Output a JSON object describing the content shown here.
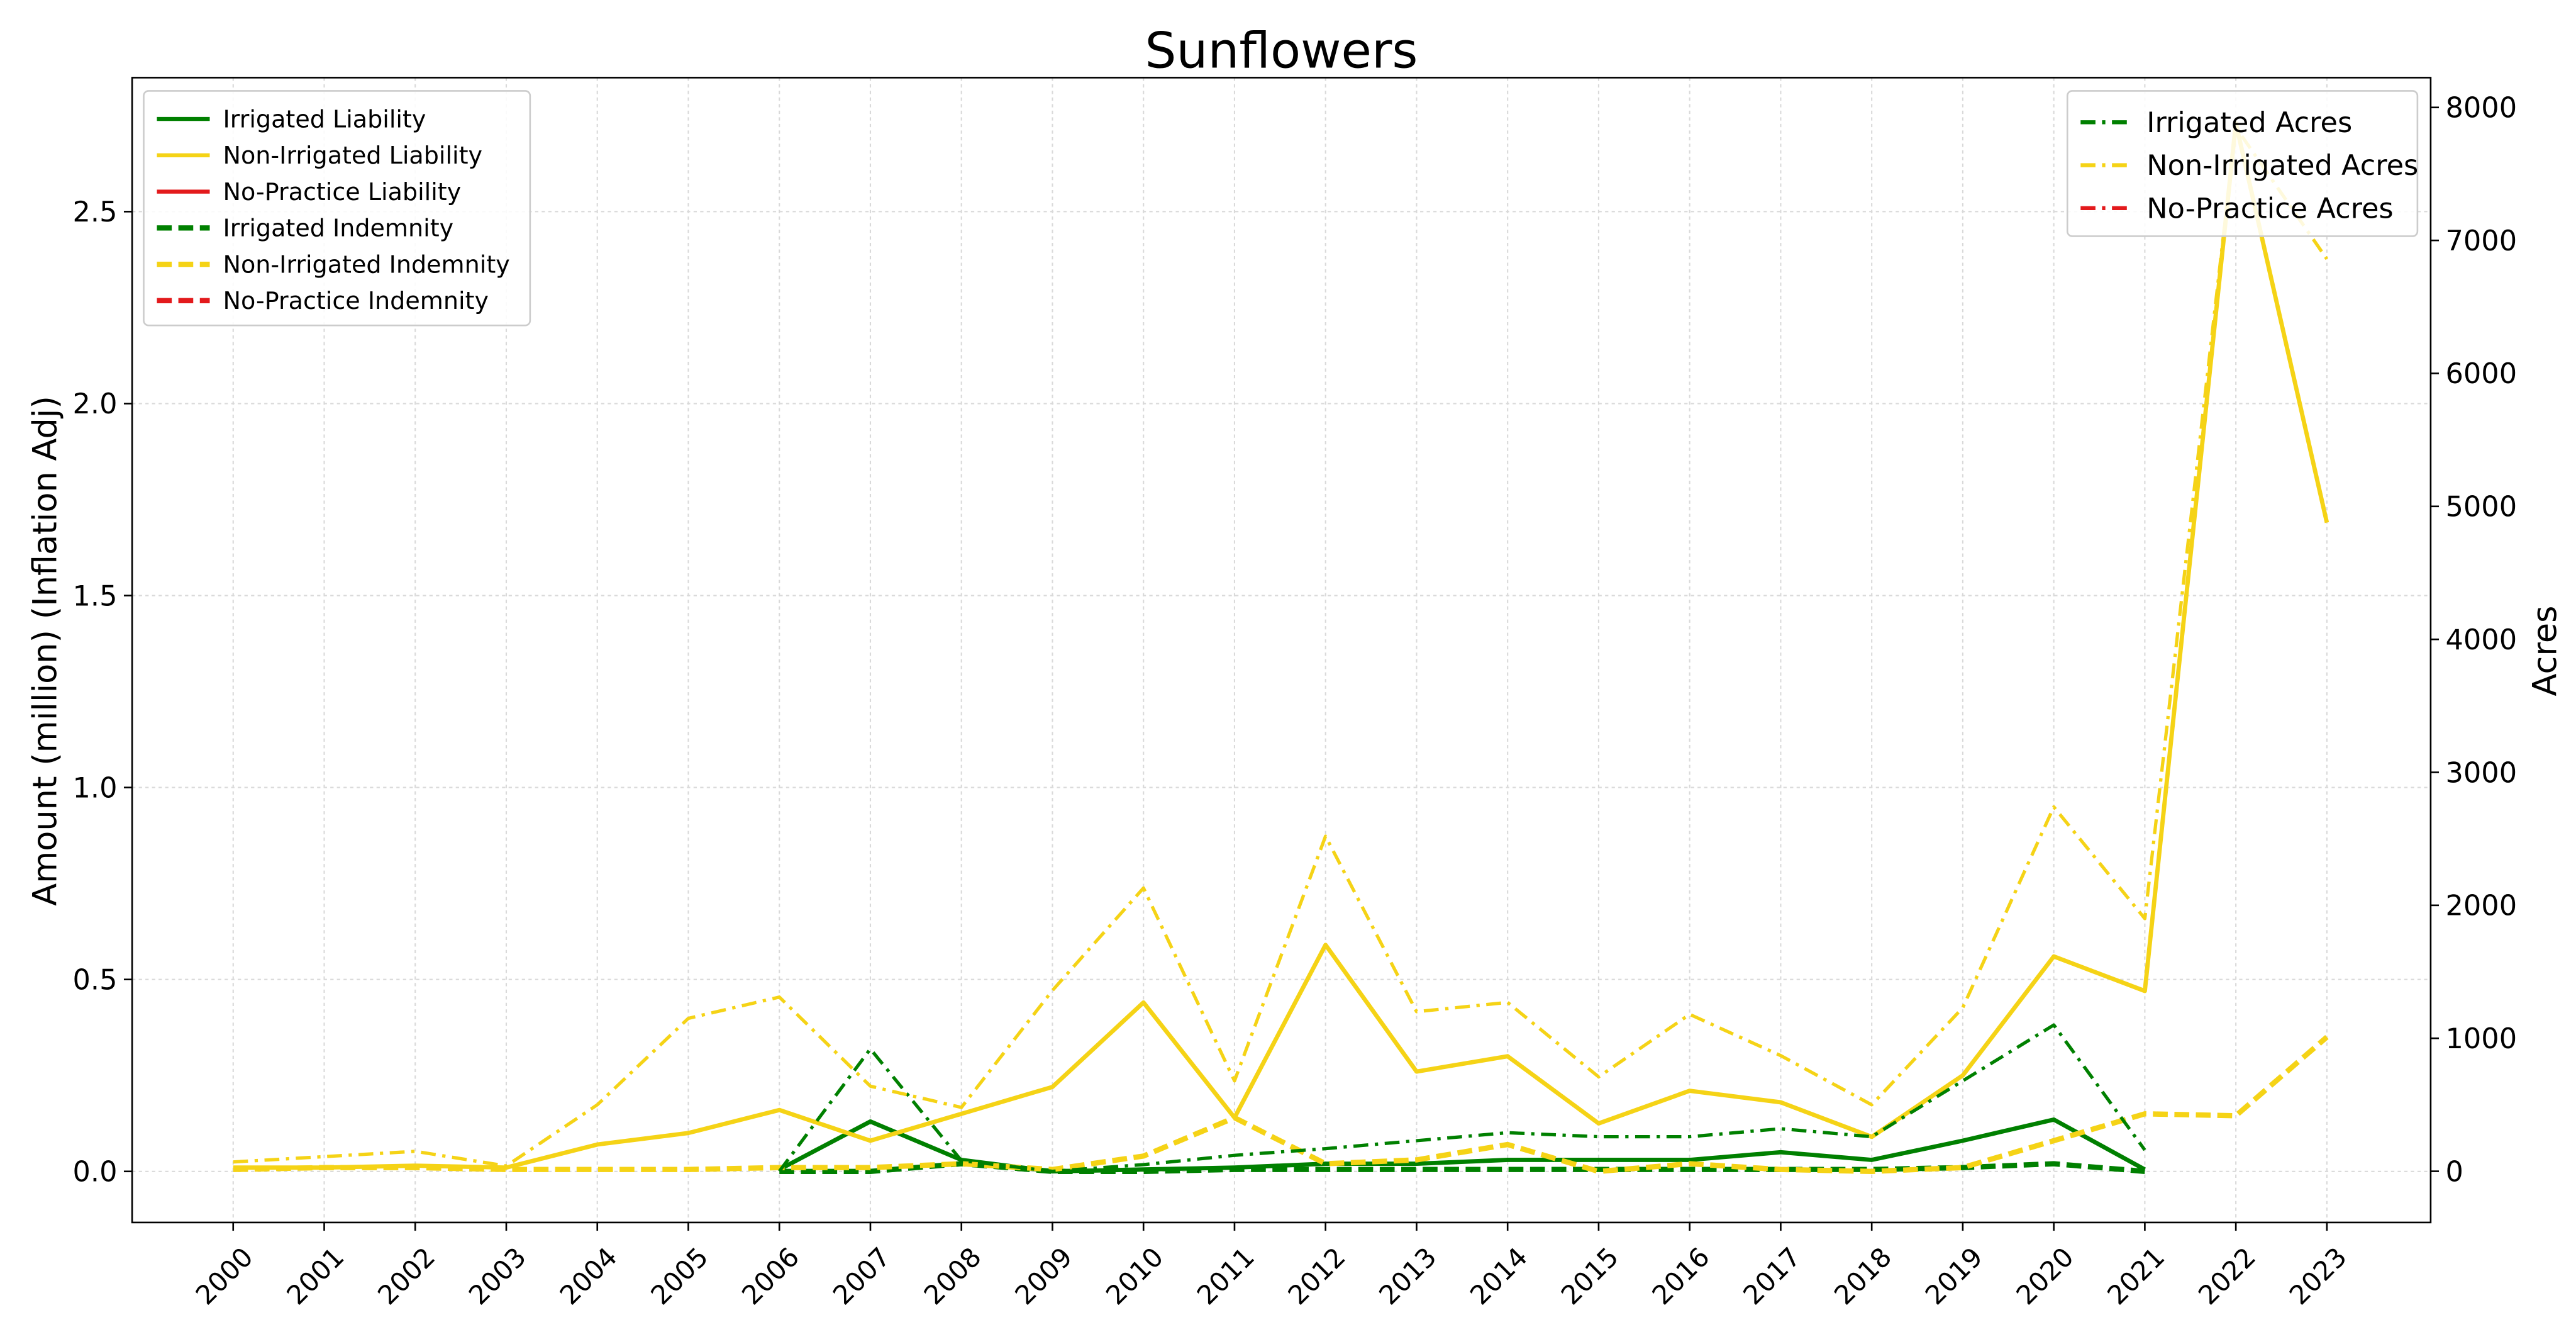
{
  "chart_data": {
    "type": "line",
    "title": "Sunflowers",
    "ylabel": "Amount (million) (Inflation Adj)",
    "y2label": "Acres",
    "x": [
      2000,
      2001,
      2002,
      2003,
      2004,
      2005,
      2006,
      2007,
      2008,
      2009,
      2010,
      2011,
      2012,
      2013,
      2014,
      2015,
      2016,
      2017,
      2018,
      2019,
      2020,
      2021,
      2022,
      2023
    ],
    "xlim": [
      1998.89,
      2024.14
    ],
    "xticks": [
      2000,
      2001,
      2002,
      2003,
      2004,
      2005,
      2006,
      2007,
      2008,
      2009,
      2010,
      2011,
      2012,
      2013,
      2014,
      2015,
      2016,
      2017,
      2018,
      2019,
      2020,
      2021,
      2022,
      2023
    ],
    "ylim": [
      -0.133,
      2.849
    ],
    "yticks": [
      {
        "value": 0,
        "label": "0.0"
      },
      {
        "value": 0.5,
        "label": "0.5"
      },
      {
        "value": 1,
        "label": "1.0"
      },
      {
        "value": 1.5,
        "label": "1.5"
      },
      {
        "value": 2,
        "label": "2.0"
      },
      {
        "value": 2.5,
        "label": "2.5"
      }
    ],
    "y2lim": [
      -385,
      8224
    ],
    "y2ticks": [
      0,
      1000,
      2000,
      3000,
      4000,
      5000,
      6000,
      7000,
      8000
    ],
    "grid": true,
    "series": [
      {
        "name": "Irrigated Liability",
        "color": "#008000",
        "dash": "solid",
        "legend": "upper left",
        "values": [
          null,
          null,
          null,
          null,
          null,
          null,
          0.005,
          0.13,
          0.03,
          0.0,
          0.005,
          0.01,
          0.02,
          0.02,
          0.03,
          0.03,
          0.03,
          0.05,
          0.03,
          0.08,
          0.135,
          0.005,
          null,
          null
        ]
      },
      {
        "name": "Non-Irrigated Liability",
        "color": "#f5d316",
        "dash": "solid",
        "legend": "upper left",
        "values": [
          0.01,
          0.01,
          0.015,
          0.01,
          0.07,
          0.1,
          0.16,
          0.08,
          0.15,
          0.22,
          0.44,
          0.14,
          0.59,
          0.26,
          0.3,
          0.125,
          0.21,
          0.18,
          0.09,
          0.25,
          0.56,
          0.47,
          2.73,
          1.69
        ]
      },
      {
        "name": "No-Practice Liability",
        "color": "#e31a1c",
        "dash": "solid",
        "legend": "upper left",
        "values": [
          null,
          null,
          null,
          null,
          null,
          null,
          null,
          null,
          null,
          null,
          null,
          null,
          null,
          null,
          null,
          null,
          null,
          null,
          null,
          null,
          null,
          null,
          null,
          null
        ]
      },
      {
        "name": "Irrigated Indemnity",
        "color": "#008000",
        "dash": "dashed",
        "legend": "upper left",
        "values": [
          null,
          null,
          null,
          null,
          null,
          null,
          0.0,
          0.0,
          0.02,
          0.0,
          0.0,
          0.005,
          0.005,
          0.005,
          0.005,
          0.005,
          0.005,
          0.005,
          0.005,
          0.01,
          0.02,
          0.0,
          null,
          null
        ]
      },
      {
        "name": "Non-Irrigated Indemnity",
        "color": "#f5d316",
        "dash": "dashed",
        "legend": "upper left",
        "values": [
          0.005,
          0.01,
          0.01,
          0.005,
          0.005,
          0.005,
          0.01,
          0.01,
          0.02,
          0.005,
          0.04,
          0.14,
          0.02,
          0.03,
          0.07,
          0.0,
          0.02,
          0.005,
          0.0,
          0.01,
          0.08,
          0.15,
          0.145,
          0.35
        ]
      },
      {
        "name": "No-Practice Indemnity",
        "color": "#e31a1c",
        "dash": "dashed",
        "legend": "upper left",
        "values": [
          null,
          null,
          null,
          null,
          null,
          null,
          null,
          null,
          null,
          null,
          null,
          null,
          null,
          null,
          null,
          null,
          null,
          null,
          null,
          null,
          null,
          null,
          null,
          null
        ]
      },
      {
        "name": "Irrigated Acres",
        "color": "#008000",
        "dash": "dashdot",
        "axis": "y2",
        "legend": "upper right",
        "values": [
          null,
          null,
          null,
          null,
          null,
          null,
          0,
          920,
          80,
          0,
          50,
          120,
          170,
          230,
          290,
          260,
          260,
          320,
          260,
          680,
          1100,
          160,
          null,
          null
        ]
      },
      {
        "name": "Non-Irrigated Acres",
        "color": "#f5d316",
        "dash": "dashdot",
        "axis": "y2",
        "legend": "upper right",
        "values": [
          70,
          110,
          150,
          40,
          500,
          1150,
          1310,
          640,
          480,
          1360,
          2130,
          680,
          2520,
          1200,
          1270,
          710,
          1180,
          870,
          500,
          1230,
          2740,
          1900,
          7850,
          6860
        ]
      },
      {
        "name": "No-Practice Acres",
        "color": "#e31a1c",
        "dash": "dashdot",
        "axis": "y2",
        "legend": "upper right",
        "values": [
          null,
          null,
          null,
          null,
          null,
          null,
          null,
          null,
          null,
          null,
          null,
          null,
          null,
          null,
          null,
          null,
          null,
          null,
          null,
          null,
          null,
          null,
          null,
          null
        ]
      }
    ]
  }
}
